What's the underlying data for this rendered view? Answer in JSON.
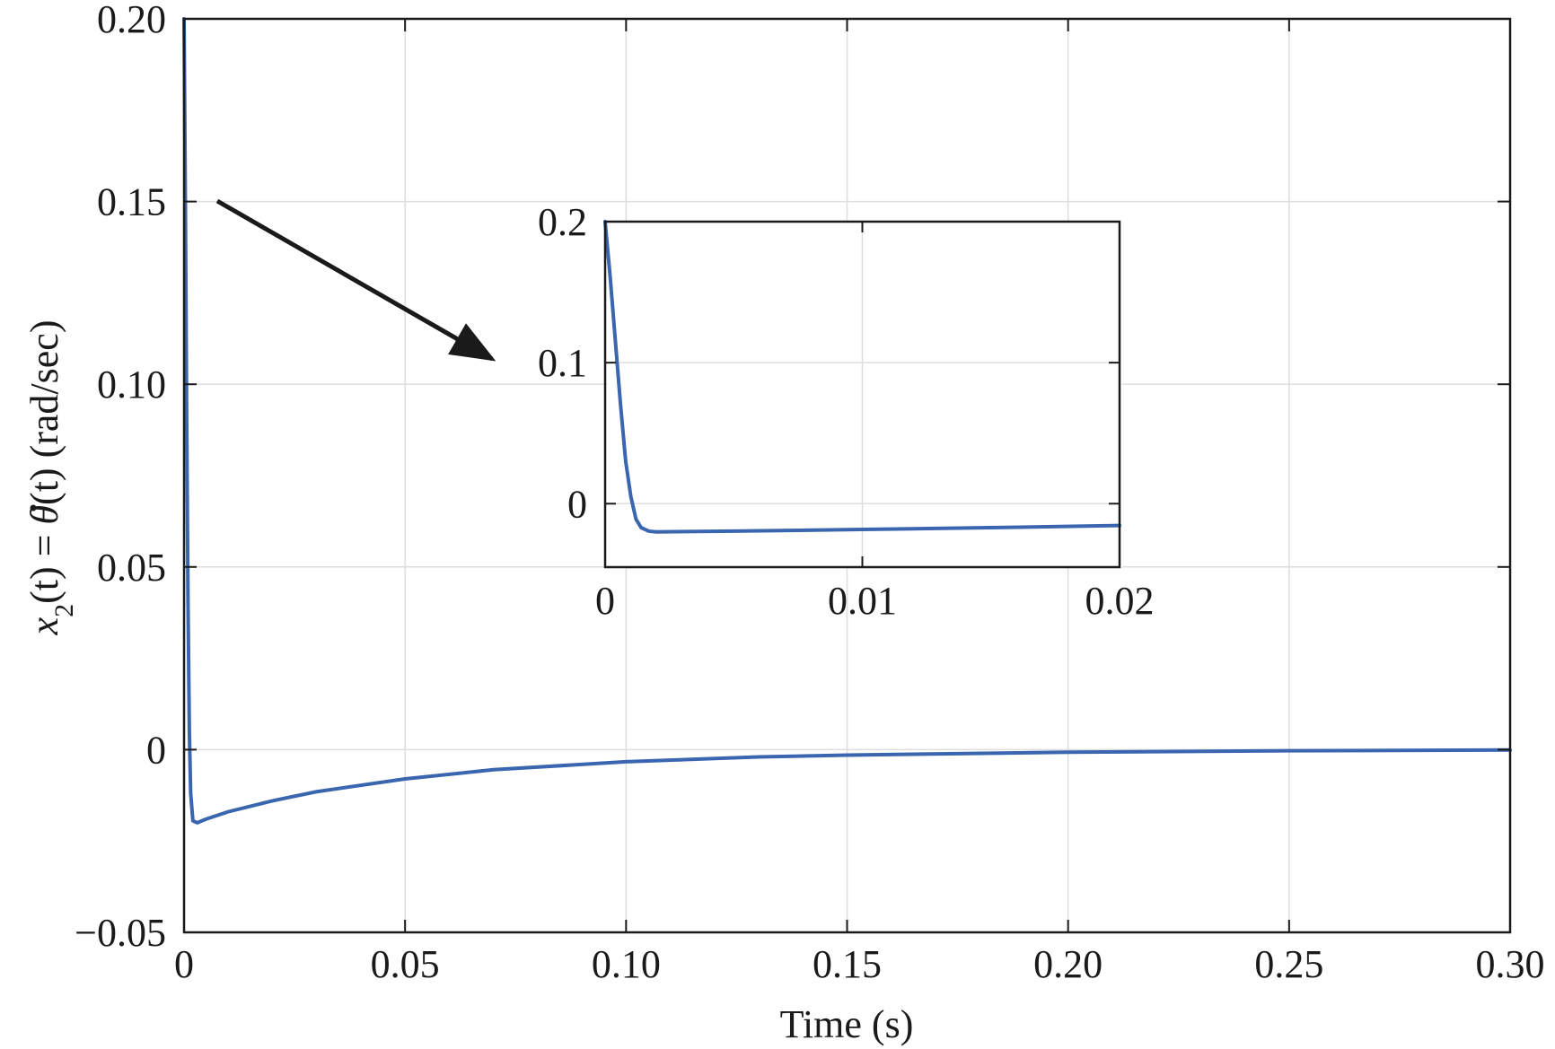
{
  "chart_data": [
    {
      "type": "line",
      "title": "",
      "xlabel": "Time (s)",
      "ylabel_parts": [
        "x",
        "2",
        "(t) = ",
        "θ",
        "(t) (rad/sec)"
      ],
      "xlim": [
        0,
        0.3
      ],
      "ylim": [
        -0.05,
        0.2
      ],
      "xticks": [
        0,
        0.05,
        0.1,
        0.15,
        0.2,
        0.25,
        0.3
      ],
      "xtick_labels": [
        "0",
        "0.05",
        "0.10",
        "0.15",
        "0.20",
        "0.25",
        "0.30"
      ],
      "yticks": [
        -0.05,
        0,
        0.05,
        0.1,
        0.15,
        0.2
      ],
      "ytick_labels": [
        "−0.05",
        "0",
        "0.05",
        "0.10",
        "0.15",
        "0.20"
      ],
      "grid": true,
      "series": [
        {
          "color": "#3a66b0",
          "x": [
            0,
            0.0003,
            0.0006,
            0.0009,
            0.0012,
            0.0015,
            0.002,
            0.003,
            0.005,
            0.01,
            0.02,
            0.03,
            0.05,
            0.07,
            0.1,
            0.13,
            0.15,
            0.2,
            0.25,
            0.3
          ],
          "y": [
            0.2,
            0.15,
            0.09,
            0.04,
            0.005,
            -0.012,
            -0.0195,
            -0.02,
            -0.019,
            -0.017,
            -0.014,
            -0.0115,
            -0.008,
            -0.0055,
            -0.0033,
            -0.002,
            -0.0015,
            -0.0007,
            -0.0003,
            -0.0001
          ]
        }
      ]
    },
    {
      "type": "line",
      "title": "",
      "xlim": [
        0,
        0.02
      ],
      "ylim": [
        -0.045,
        0.2
      ],
      "xticks": [
        0,
        0.01,
        0.02
      ],
      "xtick_labels": [
        "0",
        "0.01",
        "0.02"
      ],
      "yticks": [
        0,
        0.1,
        0.2
      ],
      "ytick_labels": [
        "0",
        "0.1",
        "0.2"
      ],
      "grid": true,
      "series": [
        {
          "color": "#3a66b0",
          "x": [
            0,
            0.0002,
            0.0004,
            0.0006,
            0.0008,
            0.001,
            0.0012,
            0.0014,
            0.0017,
            0.002,
            0.005,
            0.01,
            0.015,
            0.02
          ],
          "y": [
            0.2,
            0.16,
            0.115,
            0.07,
            0.03,
            0.005,
            -0.011,
            -0.017,
            -0.0195,
            -0.02,
            -0.0195,
            -0.0183,
            -0.017,
            -0.0155
          ]
        }
      ]
    }
  ],
  "annotations": {
    "arrow": "pointer-to-inset"
  }
}
